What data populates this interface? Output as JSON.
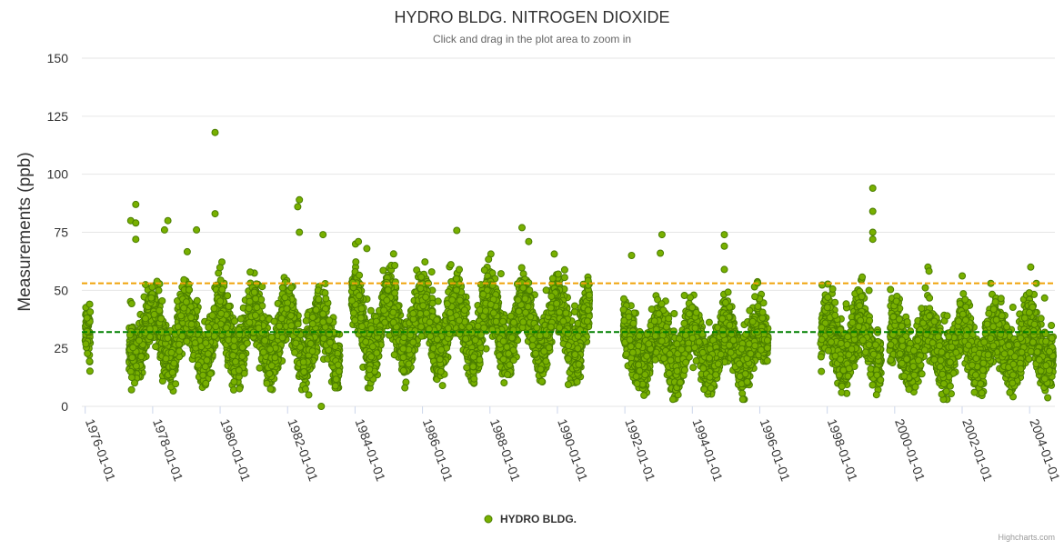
{
  "chart_data": {
    "type": "scatter",
    "title": "HYDRO BLDG. NITROGEN DIOXIDE",
    "subtitle": "Click and drag in the plot area to zoom in",
    "ylabel": "Measurements (ppb)",
    "xlabel": "",
    "ylim": [
      0,
      150
    ],
    "yticks": [
      0,
      25,
      50,
      75,
      100,
      125,
      150
    ],
    "xlim": [
      1975.9,
      2004.75
    ],
    "xtick_labels": [
      "1976-01-01",
      "1978-01-01",
      "1980-01-01",
      "1982-01-01",
      "1984-01-01",
      "1986-01-01",
      "1988-01-01",
      "1990-01-01",
      "1992-01-01",
      "1994-01-01",
      "1996-01-01",
      "1998-01-01",
      "2000-01-01",
      "2002-01-01",
      "2004-01-01"
    ],
    "xtick_years": [
      1976,
      1978,
      1980,
      1982,
      1984,
      1986,
      1988,
      1990,
      1992,
      1994,
      1996,
      1998,
      2000,
      2002,
      2004
    ],
    "reference_lines": [
      {
        "value": 53,
        "color": "#f0a30a",
        "style": "dashed"
      },
      {
        "value": 32,
        "color": "#008000",
        "style": "dashed"
      }
    ],
    "series_name": "HYDRO BLDG.",
    "series_color": "#78b000",
    "series_border": "#4a7d00",
    "data_segments": [
      {
        "start": 1976.0,
        "end": 1976.15,
        "low": 7,
        "high": 44,
        "center": 24
      },
      {
        "start": 1977.3,
        "end": 1982.95,
        "low": 4,
        "high": 80,
        "center": 30
      },
      {
        "start": 1983.05,
        "end": 1983.55,
        "low": 8,
        "high": 60,
        "center": 27
      },
      {
        "start": 1983.9,
        "end": 1990.95,
        "low": 8,
        "high": 77,
        "center": 34
      },
      {
        "start": 1991.95,
        "end": 1996.25,
        "low": 3,
        "high": 65,
        "center": 25
      },
      {
        "start": 1997.8,
        "end": 1999.6,
        "low": 5,
        "high": 75,
        "center": 27
      },
      {
        "start": 1999.85,
        "end": 2004.7,
        "low": 3,
        "high": 60,
        "center": 25
      }
    ],
    "outliers": [
      {
        "x": 1979.85,
        "y": 118
      },
      {
        "x": 1979.85,
        "y": 83
      },
      {
        "x": 1977.5,
        "y": 87
      },
      {
        "x": 1977.35,
        "y": 80
      },
      {
        "x": 1977.5,
        "y": 79
      },
      {
        "x": 1977.5,
        "y": 72
      },
      {
        "x": 1978.45,
        "y": 80
      },
      {
        "x": 1978.35,
        "y": 76
      },
      {
        "x": 1979.3,
        "y": 76
      },
      {
        "x": 1982.35,
        "y": 89
      },
      {
        "x": 1982.3,
        "y": 86
      },
      {
        "x": 1982.35,
        "y": 75
      },
      {
        "x": 1983.05,
        "y": 74
      },
      {
        "x": 1983.0,
        "y": 0
      },
      {
        "x": 1984.1,
        "y": 71
      },
      {
        "x": 1984.35,
        "y": 68
      },
      {
        "x": 1988.95,
        "y": 77
      },
      {
        "x": 1989.15,
        "y": 71
      },
      {
        "x": 1992.2,
        "y": 65
      },
      {
        "x": 1993.1,
        "y": 74
      },
      {
        "x": 1993.05,
        "y": 66
      },
      {
        "x": 1994.95,
        "y": 74
      },
      {
        "x": 1994.95,
        "y": 69
      },
      {
        "x": 1994.95,
        "y": 59
      },
      {
        "x": 1999.35,
        "y": 94
      },
      {
        "x": 1999.35,
        "y": 84
      },
      {
        "x": 1999.35,
        "y": 75
      },
      {
        "x": 1999.35,
        "y": 72
      },
      {
        "x": 2004.2,
        "y": 53
      },
      {
        "x": 2002.85,
        "y": 53
      }
    ],
    "legend_position": "bottom-center",
    "credits": "Highcharts.com"
  }
}
